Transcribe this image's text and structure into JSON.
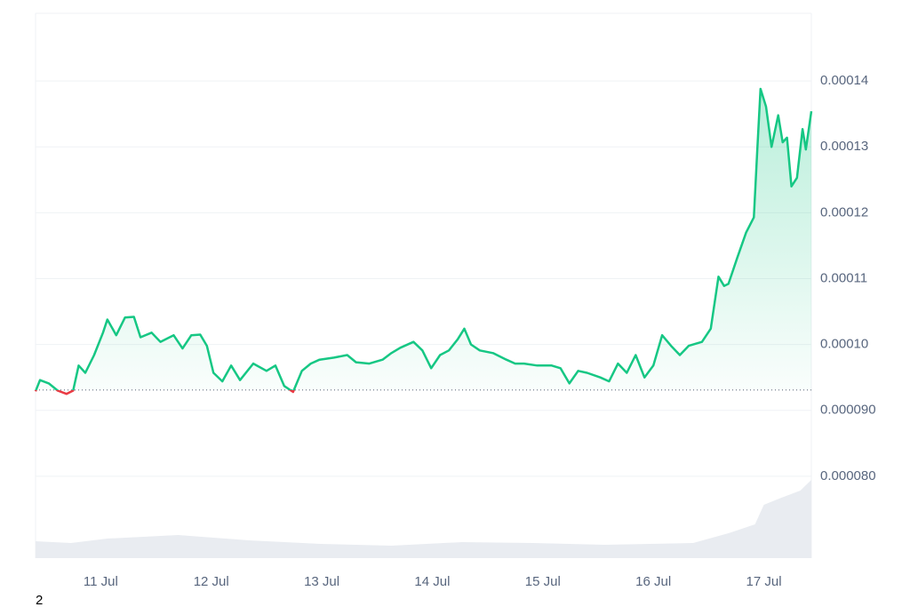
{
  "chart_data": {
    "type": "line",
    "x": [
      10.41,
      10.45,
      10.53,
      10.61,
      10.69,
      10.75,
      10.8,
      10.86,
      10.94,
      11.02,
      11.06,
      11.14,
      11.22,
      11.3,
      11.36,
      11.46,
      11.54,
      11.66,
      11.74,
      11.82,
      11.9,
      11.96,
      12.02,
      12.1,
      12.18,
      12.26,
      12.38,
      12.5,
      12.58,
      12.66,
      12.74,
      12.82,
      12.9,
      12.98,
      13.11,
      13.23,
      13.31,
      13.43,
      13.55,
      13.63,
      13.71,
      13.83,
      13.91,
      13.99,
      14.07,
      14.15,
      14.23,
      14.29,
      14.35,
      14.43,
      14.55,
      14.67,
      14.75,
      14.83,
      14.95,
      15.08,
      15.16,
      15.24,
      15.32,
      15.4,
      15.52,
      15.6,
      15.68,
      15.76,
      15.84,
      15.92,
      16.0,
      16.08,
      16.16,
      16.24,
      16.32,
      16.44,
      16.52,
      16.59,
      16.64,
      16.68,
      16.76,
      16.84,
      16.91,
      16.94,
      16.97,
      17.02,
      17.07,
      17.13,
      17.17,
      17.21,
      17.25,
      17.3,
      17.35,
      17.38,
      17.43
    ],
    "values": [
      9.29e-05,
      9.46e-05,
      9.41e-05,
      9.3e-05,
      9.25e-05,
      9.3e-05,
      9.68e-05,
      9.57e-05,
      9.84e-05,
      0.0001018,
      0.0001038,
      0.0001014,
      0.0001041,
      0.0001042,
      0.0001011,
      0.0001018,
      0.0001004,
      0.0001014,
      9.94e-05,
      0.0001014,
      0.0001015,
      9.98e-05,
      9.57e-05,
      9.44e-05,
      9.68e-05,
      9.46e-05,
      9.71e-05,
      9.6e-05,
      9.68e-05,
      9.37e-05,
      9.28e-05,
      9.6e-05,
      9.71e-05,
      9.77e-05,
      9.8e-05,
      9.84e-05,
      9.73e-05,
      9.71e-05,
      9.77e-05,
      9.87e-05,
      9.95e-05,
      0.0001004,
      9.91e-05,
      9.64e-05,
      9.84e-05,
      9.91e-05,
      0.0001008,
      0.0001024,
      0.0001,
      9.91e-05,
      9.87e-05,
      9.77e-05,
      9.71e-05,
      9.71e-05,
      9.68e-05,
      9.68e-05,
      9.64e-05,
      9.41e-05,
      9.6e-05,
      9.57e-05,
      9.5e-05,
      9.44e-05,
      9.71e-05,
      9.57e-05,
      9.84e-05,
      9.5e-05,
      9.68e-05,
      0.0001014,
      9.98e-05,
      9.84e-05,
      9.98e-05,
      0.0001004,
      0.0001024,
      0.0001103,
      0.0001089,
      0.0001092,
      0.0001132,
      0.000117,
      0.0001193,
      0.0001294,
      0.0001388,
      0.0001361,
      0.00013,
      0.0001348,
      0.0001307,
      0.0001314,
      0.000124,
      0.0001253,
      0.0001327,
      0.0001296,
      0.0001354
    ],
    "baseline": 9.31e-05,
    "color": "#16c784",
    "down_color": "#ea3943",
    "volume_x": [
      10.41,
      10.73,
      11.06,
      11.7,
      12.34,
      12.99,
      13.63,
      14.27,
      14.91,
      15.56,
      16.36,
      16.68,
      16.92,
      17.0,
      17.16,
      17.33,
      17.43
    ],
    "volume_values": [
      19,
      17,
      22,
      26,
      20,
      16,
      14,
      18,
      17,
      15,
      17,
      28,
      38,
      60,
      68,
      76,
      88
    ],
    "volume_ylim": [
      0,
      100
    ],
    "xlim": [
      10.41,
      17.43
    ],
    "xticks": [
      {
        "value": 11,
        "label": "11 Jul"
      },
      {
        "value": 12,
        "label": "12 Jul"
      },
      {
        "value": 13,
        "label": "13 Jul"
      },
      {
        "value": 14,
        "label": "14 Jul"
      },
      {
        "value": 15,
        "label": "15 Jul"
      },
      {
        "value": 16,
        "label": "16 Jul"
      },
      {
        "value": 17,
        "label": "17 Jul"
      }
    ],
    "ylim": [
      7e-05,
      0.00015
    ],
    "yticks": [
      {
        "value": 8e-05,
        "label": "0.000080"
      },
      {
        "value": 9e-05,
        "label": "0.000090"
      },
      {
        "value": 0.0001,
        "label": "0.00010"
      },
      0.00011,
      0.00012,
      0.00013,
      0.00014
    ],
    "grid": true,
    "footnote": "2"
  }
}
